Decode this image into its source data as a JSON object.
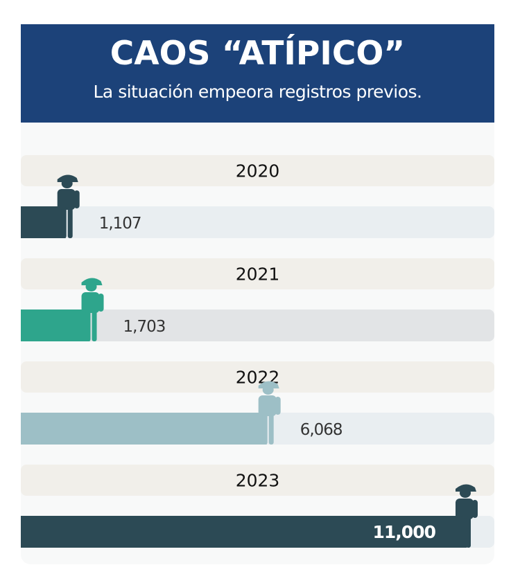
{
  "header": {
    "title": "CAOS “ATÍPICO”",
    "subtitle": "La situación empeora registros previos."
  },
  "colors": {
    "header_bg": "#1c4279",
    "year_band": "#f1efea",
    "track_default": "#e9eef1",
    "track_2021": "#e2e4e6",
    "card_bg": "#f8f9f9"
  },
  "icon": "hiker-person-icon",
  "chart_data": {
    "type": "bar",
    "orientation": "horizontal",
    "title": "CAOS “ATÍPICO”",
    "subtitle": "La situación empeora registros previos.",
    "categories": [
      "2020",
      "2021",
      "2022",
      "2023"
    ],
    "values": [
      1107,
      1703,
      6068,
      11000
    ],
    "value_labels": [
      "1,107",
      "1,703",
      "6,068",
      "11,000"
    ],
    "bar_colors": [
      "#2c4a55",
      "#2ea58c",
      "#9dbfc6",
      "#2c4a55"
    ],
    "xlim": [
      0,
      11000
    ],
    "grid": false,
    "legend": "none"
  }
}
